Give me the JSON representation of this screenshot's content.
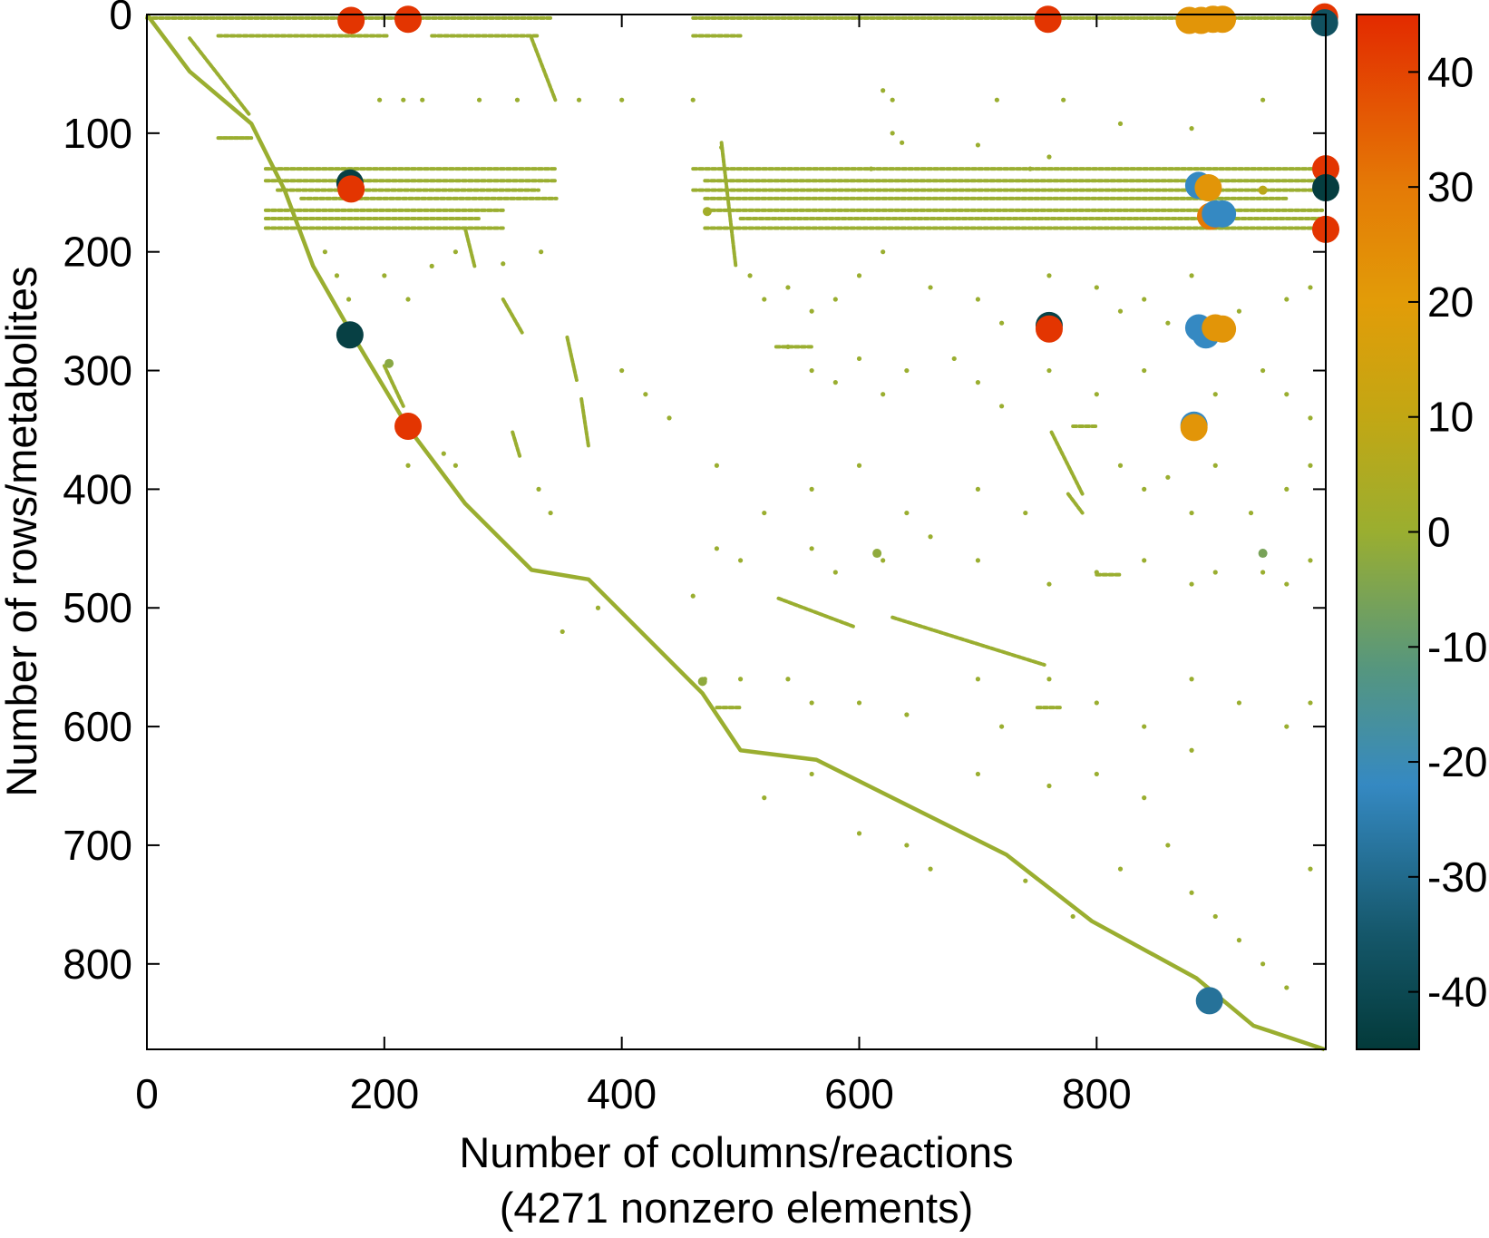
{
  "chart_data": {
    "type": "scatter",
    "subtype": "sparsity-pattern",
    "xlabel": "Number of columns/reactions",
    "xlabel_note": "(4271 nonzero elements)",
    "ylabel": "Number of rows/metabolites",
    "xlim": [
      0,
      993
    ],
    "ylim": [
      872,
      0
    ],
    "y_reversed": true,
    "xticks": [
      0,
      200,
      400,
      600,
      800
    ],
    "yticks": [
      0,
      100,
      200,
      300,
      400,
      500,
      600,
      700,
      800
    ],
    "colorbar": {
      "range": [
        -45,
        45
      ],
      "ticks": [
        40,
        30,
        20,
        10,
        0,
        -10,
        -20,
        -30,
        -40
      ],
      "colormap": [
        {
          "v": -45,
          "c": "#033a3a"
        },
        {
          "v": -35,
          "c": "#15576a"
        },
        {
          "v": -22,
          "c": "#3589c2"
        },
        {
          "v": -12,
          "c": "#55967f"
        },
        {
          "v": 0,
          "c": "#9aae30"
        },
        {
          "v": 10,
          "c": "#c2a714"
        },
        {
          "v": 20,
          "c": "#e29c08"
        },
        {
          "v": 30,
          "c": "#e47a06"
        },
        {
          "v": 45,
          "c": "#e32a00"
        }
      ]
    },
    "grid": false,
    "small_value_color": "#9aae30",
    "diagonal": [
      [
        0,
        0
      ],
      [
        36,
        48
      ],
      [
        88,
        92
      ],
      [
        116,
        148
      ],
      [
        140,
        212
      ],
      [
        172,
        268
      ],
      [
        220,
        348
      ],
      [
        268,
        412
      ],
      [
        324,
        468
      ],
      [
        372,
        476
      ],
      [
        404,
        508
      ],
      [
        468,
        572
      ],
      [
        500,
        620
      ],
      [
        564,
        628
      ],
      [
        660,
        676
      ],
      [
        724,
        708
      ],
      [
        796,
        764
      ],
      [
        884,
        812
      ],
      [
        932,
        852
      ],
      [
        992,
        872
      ]
    ],
    "streaks": [
      [
        [
          36,
          20
        ],
        [
          86,
          84
        ]
      ],
      [
        [
          324,
          20
        ],
        [
          344,
          72
        ]
      ],
      [
        [
          268,
          180
        ],
        [
          276,
          212
        ]
      ],
      [
        [
          354,
          272
        ],
        [
          362,
          308
        ]
      ],
      [
        [
          366,
          324
        ],
        [
          372,
          364
        ]
      ],
      [
        [
          308,
          352
        ],
        [
          314,
          372
        ]
      ],
      [
        [
          484,
          108
        ],
        [
          496,
          212
        ]
      ],
      [
        [
          762,
          352
        ],
        [
          788,
          404
        ]
      ],
      [
        [
          776,
          404
        ],
        [
          788,
          420
        ]
      ],
      [
        [
          532,
          492
        ],
        [
          596,
          516
        ]
      ],
      [
        [
          628,
          508
        ],
        [
          756,
          548
        ]
      ],
      [
        [
          60,
          104
        ],
        [
          88,
          104
        ]
      ],
      [
        [
          200,
          296
        ],
        [
          216,
          330
        ]
      ],
      [
        [
          300,
          240
        ],
        [
          316,
          268
        ]
      ]
    ],
    "row_bands": [
      [
        3,
        0,
        340
      ],
      [
        3,
        460,
        990
      ],
      [
        18,
        60,
        204
      ],
      [
        18,
        240,
        330
      ],
      [
        18,
        460,
        500
      ],
      [
        130,
        100,
        345
      ],
      [
        130,
        460,
        990
      ],
      [
        140,
        100,
        345
      ],
      [
        140,
        470,
        990
      ],
      [
        148,
        110,
        330
      ],
      [
        148,
        460,
        990
      ],
      [
        155,
        130,
        345
      ],
      [
        155,
        470,
        960
      ],
      [
        165,
        100,
        300
      ],
      [
        165,
        470,
        990
      ],
      [
        172,
        100,
        280
      ],
      [
        172,
        500,
        990
      ],
      [
        180,
        100,
        300
      ],
      [
        180,
        470,
        990
      ],
      [
        280,
        530,
        560
      ],
      [
        347,
        780,
        800
      ],
      [
        472,
        800,
        820
      ],
      [
        584,
        480,
        500
      ],
      [
        584,
        750,
        770
      ]
    ],
    "points": [
      [
        196,
        72
      ],
      [
        216,
        72
      ],
      [
        232,
        72
      ],
      [
        280,
        72
      ],
      [
        312,
        72
      ],
      [
        364,
        72
      ],
      [
        400,
        72
      ],
      [
        460,
        72
      ],
      [
        628,
        72
      ],
      [
        716,
        72
      ],
      [
        772,
        72
      ],
      [
        940,
        72
      ],
      [
        620,
        64
      ],
      [
        628,
        100
      ],
      [
        636,
        108
      ],
      [
        484,
        112
      ],
      [
        610,
        130
      ],
      [
        744,
        130
      ],
      [
        760,
        120
      ],
      [
        700,
        110
      ],
      [
        820,
        92
      ],
      [
        880,
        96
      ],
      [
        150,
        200
      ],
      [
        160,
        220
      ],
      [
        200,
        220
      ],
      [
        220,
        240
      ],
      [
        240,
        212
      ],
      [
        260,
        200
      ],
      [
        300,
        210
      ],
      [
        332,
        200
      ],
      [
        170,
        240
      ],
      [
        508,
        220
      ],
      [
        520,
        240
      ],
      [
        540,
        230
      ],
      [
        560,
        250
      ],
      [
        580,
        240
      ],
      [
        600,
        220
      ],
      [
        620,
        200
      ],
      [
        660,
        230
      ],
      [
        700,
        240
      ],
      [
        720,
        260
      ],
      [
        760,
        220
      ],
      [
        800,
        230
      ],
      [
        820,
        250
      ],
      [
        840,
        240
      ],
      [
        860,
        260
      ],
      [
        880,
        220
      ],
      [
        920,
        250
      ],
      [
        960,
        240
      ],
      [
        980,
        230
      ],
      [
        540,
        280
      ],
      [
        560,
        300
      ],
      [
        580,
        310
      ],
      [
        600,
        290
      ],
      [
        620,
        320
      ],
      [
        640,
        300
      ],
      [
        680,
        290
      ],
      [
        700,
        310
      ],
      [
        720,
        330
      ],
      [
        760,
        300
      ],
      [
        800,
        320
      ],
      [
        840,
        300
      ],
      [
        900,
        320
      ],
      [
        940,
        300
      ],
      [
        960,
        320
      ],
      [
        980,
        340
      ],
      [
        400,
        300
      ],
      [
        420,
        320
      ],
      [
        440,
        340
      ],
      [
        220,
        380
      ],
      [
        250,
        370
      ],
      [
        260,
        380
      ],
      [
        330,
        400
      ],
      [
        340,
        420
      ],
      [
        480,
        380
      ],
      [
        520,
        420
      ],
      [
        560,
        400
      ],
      [
        600,
        380
      ],
      [
        640,
        420
      ],
      [
        700,
        400
      ],
      [
        740,
        420
      ],
      [
        820,
        380
      ],
      [
        840,
        400
      ],
      [
        860,
        390
      ],
      [
        880,
        420
      ],
      [
        900,
        380
      ],
      [
        930,
        420
      ],
      [
        960,
        400
      ],
      [
        980,
        380
      ],
      [
        480,
        450
      ],
      [
        500,
        460
      ],
      [
        560,
        450
      ],
      [
        580,
        470
      ],
      [
        620,
        460
      ],
      [
        660,
        440
      ],
      [
        700,
        460
      ],
      [
        760,
        480
      ],
      [
        800,
        470
      ],
      [
        840,
        460
      ],
      [
        880,
        480
      ],
      [
        900,
        470
      ],
      [
        940,
        470
      ],
      [
        960,
        480
      ],
      [
        980,
        460
      ],
      [
        350,
        520
      ],
      [
        380,
        500
      ],
      [
        460,
        490
      ],
      [
        470,
        560
      ],
      [
        500,
        560
      ],
      [
        540,
        560
      ],
      [
        560,
        580
      ],
      [
        600,
        580
      ],
      [
        640,
        590
      ],
      [
        700,
        560
      ],
      [
        720,
        600
      ],
      [
        760,
        560
      ],
      [
        800,
        580
      ],
      [
        840,
        600
      ],
      [
        880,
        560
      ],
      [
        920,
        580
      ],
      [
        960,
        600
      ],
      [
        980,
        580
      ],
      [
        700,
        640
      ],
      [
        760,
        650
      ],
      [
        800,
        640
      ],
      [
        840,
        660
      ],
      [
        880,
        620
      ],
      [
        860,
        700
      ],
      [
        820,
        720
      ],
      [
        880,
        740
      ],
      [
        900,
        760
      ],
      [
        920,
        780
      ],
      [
        940,
        800
      ],
      [
        960,
        820
      ],
      [
        980,
        720
      ],
      [
        740,
        730
      ],
      [
        780,
        760
      ],
      [
        600,
        690
      ],
      [
        640,
        700
      ],
      [
        660,
        720
      ],
      [
        560,
        640
      ],
      [
        520,
        660
      ]
    ],
    "medium_points": [
      {
        "x": 472,
        "y": 166,
        "v": 2
      },
      {
        "x": 615,
        "y": 454,
        "v": -2
      },
      {
        "x": 940,
        "y": 454,
        "v": -6
      },
      {
        "x": 204,
        "y": 294,
        "v": -3
      },
      {
        "x": 940,
        "y": 148,
        "v": 8
      },
      {
        "x": 468,
        "y": 562,
        "v": -2
      }
    ],
    "large_values": [
      {
        "x": 172,
        "y": 5,
        "v": 43
      },
      {
        "x": 220,
        "y": 4,
        "v": 43
      },
      {
        "x": 759,
        "y": 4,
        "v": 43
      },
      {
        "x": 992,
        "y": 2,
        "v": 43
      },
      {
        "x": 992,
        "y": 7,
        "v": -37
      },
      {
        "x": 878,
        "y": 5,
        "v": 22
      },
      {
        "x": 888,
        "y": 5,
        "v": 22
      },
      {
        "x": 898,
        "y": 4,
        "v": 22
      },
      {
        "x": 906,
        "y": 4,
        "v": 22
      },
      {
        "x": 171,
        "y": 142,
        "v": -43
      },
      {
        "x": 172,
        "y": 147,
        "v": 43
      },
      {
        "x": 993,
        "y": 130,
        "v": 43
      },
      {
        "x": 993,
        "y": 146,
        "v": -44
      },
      {
        "x": 993,
        "y": 181,
        "v": 43
      },
      {
        "x": 886,
        "y": 144,
        "v": -22
      },
      {
        "x": 894,
        "y": 146,
        "v": 22
      },
      {
        "x": 896,
        "y": 170,
        "v": 30
      },
      {
        "x": 900,
        "y": 168,
        "v": -22
      },
      {
        "x": 906,
        "y": 168,
        "v": -22
      },
      {
        "x": 171,
        "y": 270,
        "v": -43
      },
      {
        "x": 760,
        "y": 262,
        "v": -42
      },
      {
        "x": 760,
        "y": 265,
        "v": 43
      },
      {
        "x": 886,
        "y": 264,
        "v": -22
      },
      {
        "x": 892,
        "y": 270,
        "v": -22
      },
      {
        "x": 900,
        "y": 264,
        "v": 22
      },
      {
        "x": 906,
        "y": 265,
        "v": 22
      },
      {
        "x": 220,
        "y": 347,
        "v": 43
      },
      {
        "x": 882,
        "y": 346,
        "v": -22
      },
      {
        "x": 882,
        "y": 348,
        "v": 22
      },
      {
        "x": 895,
        "y": 831,
        "v": -28
      }
    ]
  }
}
